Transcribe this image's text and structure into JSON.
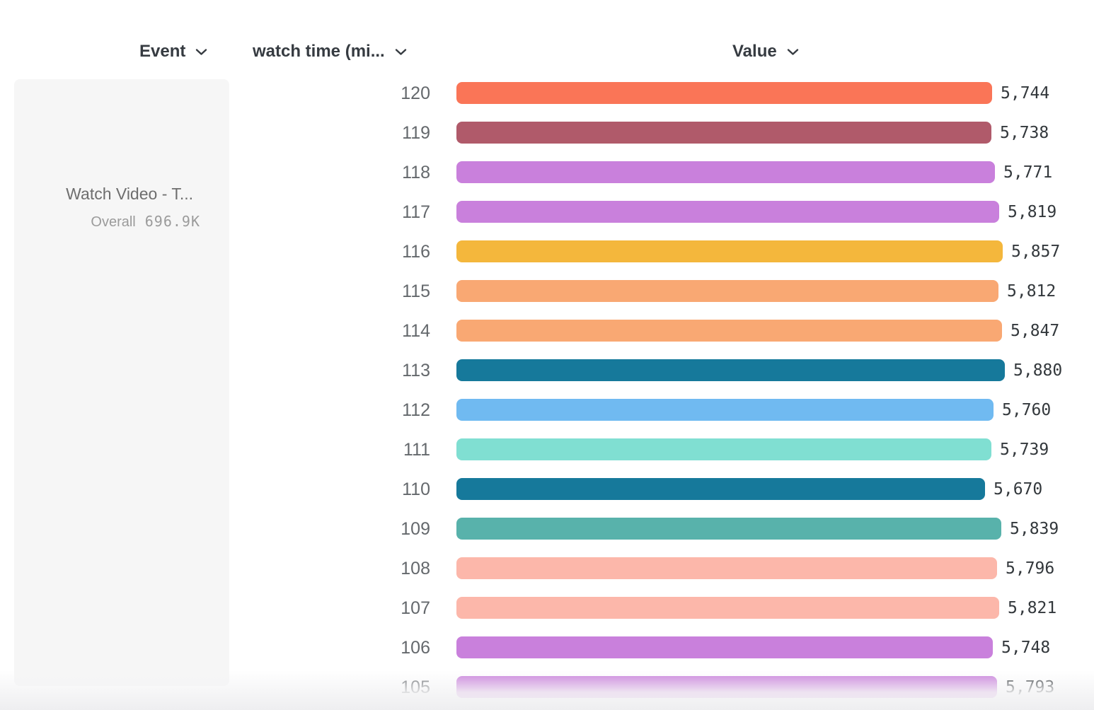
{
  "header": {
    "event_label": "Event",
    "breakdown_label": "watch time (mi...",
    "value_label": "Value"
  },
  "legend": {
    "event_name": "Watch Video - T...",
    "overall_label": "Overall",
    "overall_value": "696.9K"
  },
  "icons": {
    "chevron_down": "chevron-down"
  },
  "chart_data": {
    "type": "bar",
    "orientation": "horizontal",
    "title": "",
    "xlabel": "Value",
    "ylabel": "watch time (min)",
    "categories": [
      "120",
      "119",
      "118",
      "117",
      "116",
      "115",
      "114",
      "113",
      "112",
      "111",
      "110",
      "109",
      "108",
      "107",
      "106",
      "105"
    ],
    "values": [
      5744,
      5738,
      5771,
      5819,
      5857,
      5812,
      5847,
      5880,
      5760,
      5739,
      5670,
      5839,
      5796,
      5821,
      5748,
      5793
    ],
    "value_labels": [
      "5,744",
      "5,738",
      "5,771",
      "5,819",
      "5,857",
      "5,812",
      "5,847",
      "5,880",
      "5,760",
      "5,739",
      "5,670",
      "5,839",
      "5,796",
      "5,821",
      "5,748",
      "5,793"
    ],
    "bar_colors": [
      "#FA7557",
      "#B05A6A",
      "#C980DC",
      "#C980DC",
      "#F4B73C",
      "#F9A873",
      "#F9A873",
      "#16799B",
      "#70BAF1",
      "#80DFD2",
      "#16799B",
      "#58B2AB",
      "#FCB7AA",
      "#FCB7AA",
      "#C980DC",
      "#C980DC"
    ],
    "xlim": [
      0,
      5880
    ],
    "grid": false,
    "legend_position": "left"
  },
  "colors": {
    "header_text": "#363b41",
    "row_label_text": "#64686c",
    "value_text": "#33383c",
    "legend_card_bg": "#f6f6f6",
    "legend_event_text": "#6e6e6e",
    "legend_overall_text": "#9b9b9b",
    "page_bg": "#ffffff",
    "footer_fade": "#eeeef0"
  }
}
